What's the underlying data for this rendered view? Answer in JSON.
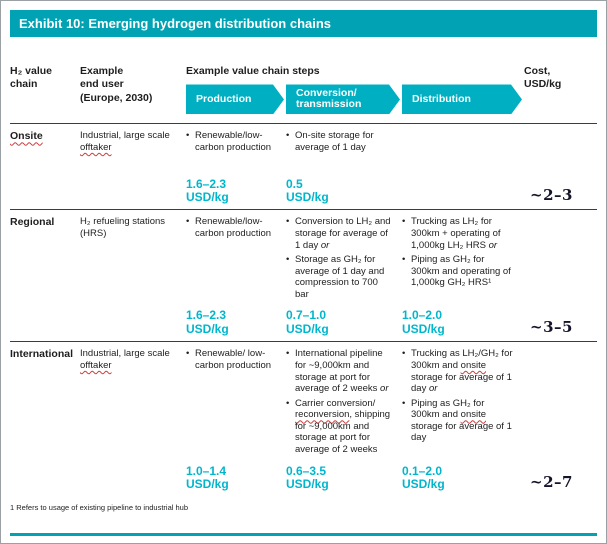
{
  "ui": {
    "accent": "#00a2b3",
    "chevron_color": "#00b0c2",
    "cost_color": "#00b6cc",
    "squiggle_words": [
      "Onsite",
      "offtaker",
      "reconversion",
      "onsite"
    ]
  },
  "title": "Exhibit 10: Emerging hydrogen distribution chains",
  "columns": {
    "chain": "H₂ value\nchain",
    "end_user": "Example\nend user\n(Europe, 2030)",
    "steps": "Example value chain steps",
    "cost": "Cost,\nUSD/kg"
  },
  "steps": [
    "Production",
    "Conversion/\ntransmission",
    "Distribution"
  ],
  "rows": [
    {
      "chain": "Onsite",
      "end_user": "Industrial, large scale offtaker",
      "production": {
        "bullets": [
          "Renewable/low-carbon production"
        ],
        "cost": "1.6–2.3\nUSD/kg"
      },
      "conversion": {
        "bullets": [
          "On-site storage for average of 1 day"
        ],
        "cost": "0.5\nUSD/kg"
      },
      "distribution": {
        "bullets": [],
        "cost": ""
      },
      "total": "~2–3"
    },
    {
      "chain": "Regional",
      "end_user": "H₂ refueling stations (HRS)",
      "production": {
        "bullets": [
          "Renewable/low-carbon production"
        ],
        "cost": "1.6–2.3\nUSD/kg"
      },
      "conversion": {
        "bullets": [
          "Conversion to LH₂ and storage for average of 1 day or",
          "Storage as GH₂ for average of 1 day and compression to 700 bar"
        ],
        "cost": "0.7–1.0\nUSD/kg"
      },
      "distribution": {
        "bullets": [
          "Trucking as LH₂ for 300km + operating of 1,000kg LH₂ HRS or",
          "Piping as GH₂ for 300km and operating of 1,000kg GH₂ HRS¹"
        ],
        "cost": "1.0–2.0\nUSD/kg"
      },
      "total": "~3–5"
    },
    {
      "chain": "International",
      "end_user": "Industrial, large scale offtaker",
      "production": {
        "bullets": [
          "Renewable/ low-carbon production"
        ],
        "cost": "1.0–1.4\nUSD/kg"
      },
      "conversion": {
        "bullets": [
          "International pipeline for ~9,000km and storage at port for average of 2 weeks or",
          "Carrier conversion/ reconversion, shipping for ~9,000km and storage at port for average of 2 weeks"
        ],
        "cost": "0.6–3.5\nUSD/kg"
      },
      "distribution": {
        "bullets": [
          "Trucking as LH₂/GH₂ for 300km and onsite storage for average of 1 day or",
          "Piping as GH₂ for 300km and onsite storage for average of 1 day"
        ],
        "cost": "0.1–2.0\nUSD/kg"
      },
      "total": "~2–7"
    }
  ],
  "footnote": "1 Refers to usage of existing pipeline to industrial hub"
}
